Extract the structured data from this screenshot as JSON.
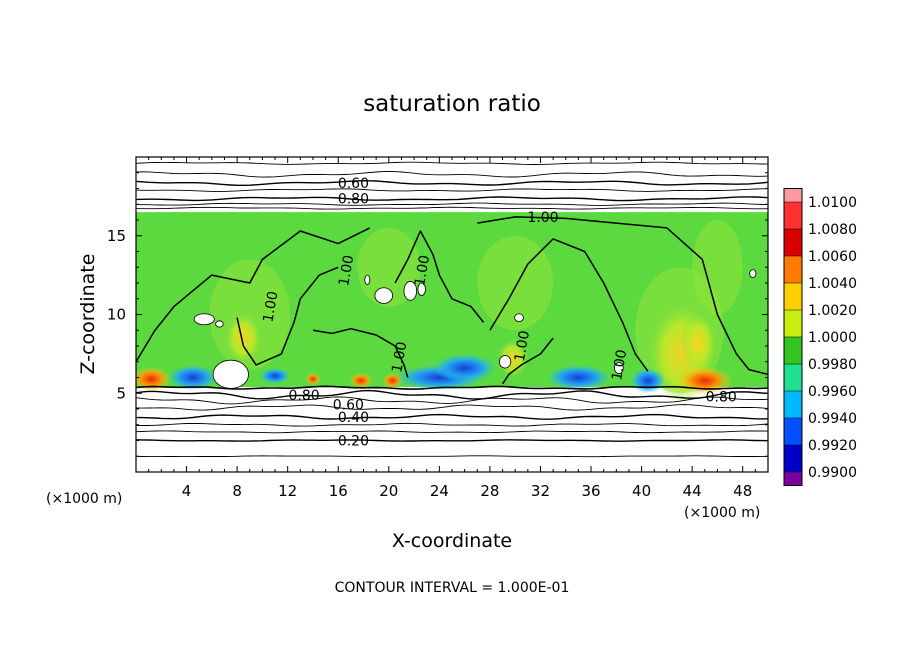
{
  "chart_data": {
    "type": "heatmap",
    "title": "saturation ratio",
    "xlabel": "X-coordinate",
    "ylabel": "Z-coordinate",
    "x_unit_label": "(×1000 m)",
    "z_unit_label": "(×1000 m)",
    "xlim": [
      0,
      50
    ],
    "ylim": [
      0,
      20
    ],
    "x_ticks": [
      "4",
      "8",
      "12",
      "16",
      "20",
      "24",
      "28",
      "32",
      "36",
      "40",
      "44",
      "48"
    ],
    "y_ticks": [
      "5",
      "10",
      "15"
    ],
    "footer": "CONTOUR INTERVAL = 1.000E-01",
    "colorbar": {
      "labels": [
        "1.0100",
        "1.0080",
        "1.0060",
        "1.0040",
        "1.0020",
        "1.0000",
        "0.9980",
        "0.9960",
        "0.9940",
        "0.9920",
        "0.9900"
      ],
      "colors": [
        "#ff9aa0",
        "#ff3030",
        "#d90000",
        "#ff7a00",
        "#ffd000",
        "#c8ee10",
        "#33c520",
        "#20e090",
        "#00b8ff",
        "#0050ff",
        "#0000c8",
        "#7a00a0"
      ]
    },
    "fill_colors": {
      "saturated": "#5bd93f",
      "saturated_light": "#8fe43a",
      "supersat_core": "#ffd21e",
      "supersat_hot": "#e82a10",
      "subsat_edge": "#23c7e8",
      "subsat_deep": "#1340d8",
      "dry": "#ffffff"
    },
    "saturated_layer": [
      5.4,
      16.5
    ],
    "contour_labels": [
      {
        "text": "0.60",
        "x": 17.2,
        "z": 18.35
      },
      {
        "text": "0.80",
        "x": 17.2,
        "z": 17.35
      },
      {
        "text": "1.00",
        "x": 32.2,
        "z": 16.2
      },
      {
        "text": "1.00",
        "x": 16.6,
        "z": 12.8
      },
      {
        "text": "1.00",
        "x": 22.6,
        "z": 12.8
      },
      {
        "text": "1.00",
        "x": 10.6,
        "z": 10.5
      },
      {
        "text": "1.00",
        "x": 20.8,
        "z": 7.3
      },
      {
        "text": "1.00",
        "x": 30.5,
        "z": 8.0
      },
      {
        "text": "1.00",
        "x": 38.2,
        "z": 6.8
      },
      {
        "text": "0.80",
        "x": 13.3,
        "z": 4.9
      },
      {
        "text": "0.60",
        "x": 16.8,
        "z": 4.3
      },
      {
        "text": "0.40",
        "x": 17.2,
        "z": 3.5
      },
      {
        "text": "0.20",
        "x": 17.2,
        "z": 2.0
      },
      {
        "text": "0.80",
        "x": 46.3,
        "z": 4.8
      }
    ]
  }
}
